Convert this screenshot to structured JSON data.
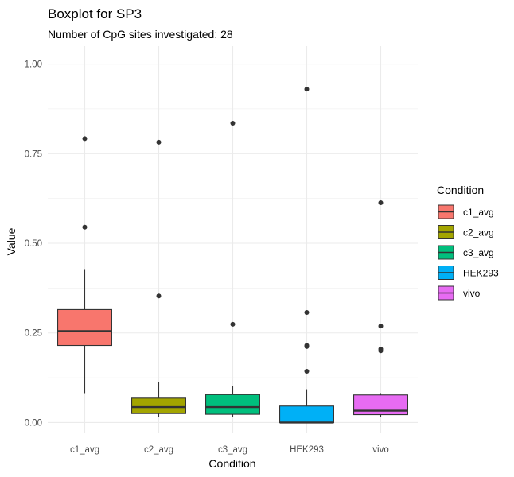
{
  "chart_data": {
    "type": "boxplot",
    "title": "Boxplot for SP3",
    "subtitle": "Number of CpG sites investigated: 28",
    "xlabel": "Condition",
    "ylabel": "Value",
    "ylim": [
      -0.03,
      1.05
    ],
    "y_ticks": [
      0.0,
      0.25,
      0.5,
      0.75,
      1.0
    ],
    "y_tick_labels": [
      "0.00",
      "0.25",
      "0.50",
      "0.75",
      "1.00"
    ],
    "grid": true,
    "legend": {
      "title": "Condition",
      "position": "right"
    },
    "categories": [
      "c1_avg",
      "c2_avg",
      "c3_avg",
      "HEK293",
      "vivo"
    ],
    "series": [
      {
        "name": "c1_avg",
        "color": "#F8766D",
        "whisker_low": 0.082,
        "q1": 0.215,
        "median": 0.255,
        "q3": 0.315,
        "whisker_high": 0.428,
        "outliers": [
          0.545,
          0.792
        ]
      },
      {
        "name": "c2_avg",
        "color": "#A3A500",
        "whisker_low": 0.015,
        "q1": 0.025,
        "median": 0.043,
        "q3": 0.068,
        "whisker_high": 0.113,
        "outliers": [
          0.353,
          0.782
        ]
      },
      {
        "name": "c3_avg",
        "color": "#00BF7D",
        "whisker_low": 0.015,
        "q1": 0.023,
        "median": 0.043,
        "q3": 0.078,
        "whisker_high": 0.102,
        "outliers": [
          0.274,
          0.835
        ]
      },
      {
        "name": "HEK293",
        "color": "#00B0F6",
        "whisker_low": 0.0,
        "q1": 0.0,
        "median": 0.0,
        "q3": 0.046,
        "whisker_high": 0.093,
        "outliers": [
          0.143,
          0.212,
          0.215,
          0.307,
          0.93
        ]
      },
      {
        "name": "vivo",
        "color": "#E76BF3",
        "whisker_low": 0.015,
        "q1": 0.022,
        "median": 0.033,
        "q3": 0.077,
        "whisker_high": 0.082,
        "outliers": [
          0.2,
          0.205,
          0.269,
          0.613
        ]
      }
    ]
  }
}
